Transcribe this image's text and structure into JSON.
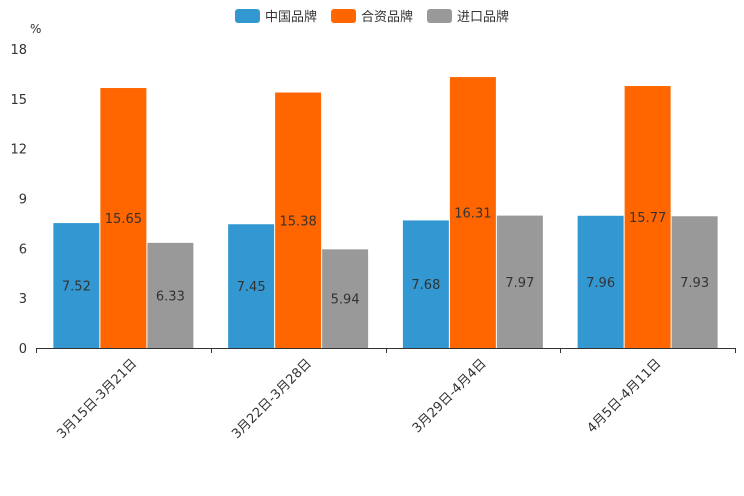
{
  "chart_data": {
    "type": "bar",
    "title": "",
    "xlabel": "",
    "ylabel": "%",
    "ylim": [
      0,
      18
    ],
    "yticks": [
      "0",
      "3",
      "6",
      "9",
      "12",
      "15",
      "18"
    ],
    "categories": [
      "3月15日-3月21日",
      "3月22日-3月28日",
      "3月29日-4月4日",
      "4月5日-4月11日"
    ],
    "series": [
      {
        "name": "中国品牌",
        "color": "#3398d2",
        "values": [
          7.52,
          7.45,
          7.68,
          7.96
        ]
      },
      {
        "name": "合资品牌",
        "color": "#ff6600",
        "values": [
          15.65,
          15.38,
          16.31,
          15.77
        ]
      },
      {
        "name": "进口品牌",
        "color": "#999999",
        "values": [
          6.33,
          5.94,
          7.97,
          7.93
        ]
      }
    ],
    "legend_position": "top-center",
    "grid": false
  }
}
